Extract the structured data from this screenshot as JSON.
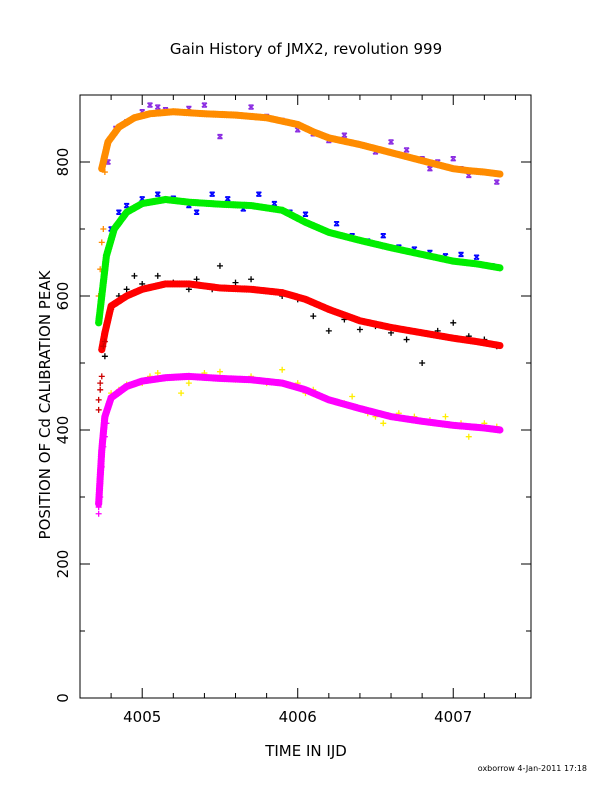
{
  "title": "Gain History of JMX2, revolution 999",
  "footer": "oxborrow   4-Jan-2011 17:18",
  "chart_data": {
    "type": "scatter",
    "xlabel": "TIME IN IJD",
    "ylabel": "POSITION OF Cd CALIBRATION PEAK",
    "xlim": [
      4004.6,
      4007.5
    ],
    "ylim": [
      0,
      900
    ],
    "x_ticks": [
      4005,
      4006,
      4007
    ],
    "x_tick_labels": [
      "4005",
      "4006",
      "4007"
    ],
    "y_ticks": [
      0,
      200,
      400,
      600,
      800
    ],
    "y_tick_labels": [
      "0",
      "200",
      "400",
      "600",
      "800"
    ],
    "grid": false,
    "series": [
      {
        "color": "#8a2be2",
        "marker": "x",
        "style": "scatter",
        "points": [
          [
            4004.78,
            800
          ],
          [
            4004.83,
            850
          ],
          [
            4004.9,
            860
          ],
          [
            4005.0,
            875
          ],
          [
            4005.05,
            885
          ],
          [
            4005.1,
            882
          ],
          [
            4005.15,
            878
          ],
          [
            4005.2,
            875
          ],
          [
            4005.3,
            880
          ],
          [
            4005.4,
            885
          ],
          [
            4005.45,
            872
          ],
          [
            4005.5,
            838
          ],
          [
            4005.6,
            870
          ],
          [
            4005.7,
            882
          ],
          [
            4005.8,
            868
          ],
          [
            4005.9,
            862
          ],
          [
            4006.0,
            848
          ],
          [
            4006.1,
            842
          ],
          [
            4006.2,
            832
          ],
          [
            4006.3,
            840
          ],
          [
            4006.4,
            826
          ],
          [
            4006.5,
            815
          ],
          [
            4006.6,
            830
          ],
          [
            4006.7,
            818
          ],
          [
            4006.8,
            805
          ],
          [
            4006.85,
            790
          ],
          [
            4006.9,
            800
          ],
          [
            4007.0,
            805
          ],
          [
            4007.05,
            790
          ],
          [
            4007.1,
            780
          ],
          [
            4007.2,
            785
          ],
          [
            4007.28,
            770
          ]
        ]
      },
      {
        "color": "#ff8c00",
        "marker": "o",
        "style": "smooth",
        "points": [
          [
            4004.74,
            790
          ],
          [
            4004.78,
            830
          ],
          [
            4004.85,
            852
          ],
          [
            4004.95,
            866
          ],
          [
            4005.05,
            872
          ],
          [
            4005.2,
            875
          ],
          [
            4005.4,
            872
          ],
          [
            4005.6,
            870
          ],
          [
            4005.8,
            866
          ],
          [
            4006.0,
            856
          ],
          [
            4006.1,
            845
          ],
          [
            4006.2,
            836
          ],
          [
            4006.4,
            826
          ],
          [
            4006.6,
            814
          ],
          [
            4006.8,
            802
          ],
          [
            4007.0,
            790
          ],
          [
            4007.1,
            787
          ],
          [
            4007.2,
            785
          ],
          [
            4007.3,
            782
          ]
        ]
      },
      {
        "color": "#ff8c00",
        "marker": "+",
        "style": "scatter",
        "points": [
          [
            4004.72,
            560
          ],
          [
            4004.72,
            600
          ],
          [
            4004.73,
            640
          ],
          [
            4004.74,
            680
          ],
          [
            4004.75,
            700
          ],
          [
            4004.76,
            785
          ]
        ]
      },
      {
        "color": "#0000ff",
        "marker": "x",
        "style": "scatter",
        "points": [
          [
            4004.75,
            620
          ],
          [
            4004.8,
            700
          ],
          [
            4004.85,
            725
          ],
          [
            4004.9,
            735
          ],
          [
            4005.0,
            745
          ],
          [
            4005.1,
            752
          ],
          [
            4005.2,
            746
          ],
          [
            4005.3,
            735
          ],
          [
            4005.35,
            725
          ],
          [
            4005.45,
            752
          ],
          [
            4005.55,
            745
          ],
          [
            4005.65,
            730
          ],
          [
            4005.75,
            752
          ],
          [
            4005.85,
            738
          ],
          [
            4005.95,
            725
          ],
          [
            4006.05,
            722
          ],
          [
            4006.15,
            700
          ],
          [
            4006.25,
            708
          ],
          [
            4006.35,
            690
          ],
          [
            4006.45,
            682
          ],
          [
            4006.55,
            690
          ],
          [
            4006.65,
            673
          ],
          [
            4006.75,
            670
          ],
          [
            4006.85,
            665
          ],
          [
            4006.95,
            660
          ],
          [
            4007.05,
            662
          ],
          [
            4007.15,
            658
          ],
          [
            4007.25,
            645
          ]
        ]
      },
      {
        "color": "#00ee00",
        "marker": "o",
        "style": "smooth",
        "points": [
          [
            4004.72,
            560
          ],
          [
            4004.74,
            600
          ],
          [
            4004.77,
            660
          ],
          [
            4004.82,
            700
          ],
          [
            4004.9,
            725
          ],
          [
            4005.0,
            738
          ],
          [
            4005.15,
            744
          ],
          [
            4005.3,
            740
          ],
          [
            4005.5,
            737
          ],
          [
            4005.7,
            735
          ],
          [
            4005.9,
            728
          ],
          [
            4006.05,
            710
          ],
          [
            4006.2,
            695
          ],
          [
            4006.4,
            683
          ],
          [
            4006.6,
            672
          ],
          [
            4006.8,
            662
          ],
          [
            4007.0,
            652
          ],
          [
            4007.15,
            648
          ],
          [
            4007.3,
            642
          ]
        ]
      },
      {
        "color": "#000000",
        "marker": "+",
        "style": "scatter",
        "points": [
          [
            4004.76,
            510
          ],
          [
            4004.8,
            580
          ],
          [
            4004.85,
            600
          ],
          [
            4004.9,
            610
          ],
          [
            4004.95,
            630
          ],
          [
            4005.0,
            618
          ],
          [
            4005.1,
            630
          ],
          [
            4005.2,
            620
          ],
          [
            4005.3,
            610
          ],
          [
            4005.35,
            625
          ],
          [
            4005.45,
            610
          ],
          [
            4005.5,
            645
          ],
          [
            4005.6,
            620
          ],
          [
            4005.7,
            625
          ],
          [
            4005.8,
            608
          ],
          [
            4005.9,
            600
          ],
          [
            4006.0,
            595
          ],
          [
            4006.1,
            570
          ],
          [
            4006.2,
            548
          ],
          [
            4006.3,
            565
          ],
          [
            4006.4,
            550
          ],
          [
            4006.5,
            555
          ],
          [
            4006.6,
            545
          ],
          [
            4006.7,
            535
          ],
          [
            4006.8,
            500
          ],
          [
            4006.9,
            548
          ],
          [
            4007.0,
            560
          ],
          [
            4007.1,
            540
          ],
          [
            4007.2,
            535
          ],
          [
            4007.28,
            525
          ]
        ]
      },
      {
        "color": "#ff0000",
        "marker": "o",
        "style": "smooth",
        "points": [
          [
            4004.74,
            520
          ],
          [
            4004.76,
            545
          ],
          [
            4004.8,
            585
          ],
          [
            4004.9,
            600
          ],
          [
            4005.0,
            610
          ],
          [
            4005.15,
            618
          ],
          [
            4005.3,
            618
          ],
          [
            4005.5,
            612
          ],
          [
            4005.7,
            610
          ],
          [
            4005.9,
            605
          ],
          [
            4006.05,
            595
          ],
          [
            4006.2,
            580
          ],
          [
            4006.4,
            563
          ],
          [
            4006.6,
            553
          ],
          [
            4006.8,
            545
          ],
          [
            4007.0,
            537
          ],
          [
            4007.15,
            532
          ],
          [
            4007.3,
            526
          ]
        ]
      },
      {
        "color": "#cc0000",
        "marker": "+",
        "style": "scatter",
        "points": [
          [
            4004.72,
            430
          ],
          [
            4004.72,
            445
          ],
          [
            4004.73,
            460
          ],
          [
            4004.73,
            470
          ],
          [
            4004.74,
            480
          ],
          [
            4004.75,
            525
          ],
          [
            4004.76,
            532
          ]
        ]
      },
      {
        "color": "#ffee00",
        "marker": "+",
        "style": "scatter",
        "points": [
          [
            4004.8,
            455
          ],
          [
            4004.85,
            460
          ],
          [
            4004.9,
            468
          ],
          [
            4005.0,
            470
          ],
          [
            4005.05,
            480
          ],
          [
            4005.1,
            485
          ],
          [
            4005.2,
            478
          ],
          [
            4005.25,
            455
          ],
          [
            4005.3,
            470
          ],
          [
            4005.4,
            485
          ],
          [
            4005.5,
            487
          ],
          [
            4005.6,
            475
          ],
          [
            4005.7,
            480
          ],
          [
            4005.8,
            470
          ],
          [
            4005.9,
            490
          ],
          [
            4006.0,
            470
          ],
          [
            4006.05,
            455
          ],
          [
            4006.1,
            460
          ],
          [
            4006.2,
            445
          ],
          [
            4006.3,
            440
          ],
          [
            4006.35,
            450
          ],
          [
            4006.45,
            425
          ],
          [
            4006.5,
            420
          ],
          [
            4006.55,
            410
          ],
          [
            4006.65,
            425
          ],
          [
            4006.75,
            420
          ],
          [
            4006.85,
            415
          ],
          [
            4006.95,
            420
          ],
          [
            4007.05,
            410
          ],
          [
            4007.1,
            390
          ],
          [
            4007.2,
            410
          ],
          [
            4007.28,
            405
          ]
        ]
      },
      {
        "color": "#ff00ff",
        "marker": "o",
        "style": "smooth",
        "points": [
          [
            4004.72,
            290
          ],
          [
            4004.73,
            330
          ],
          [
            4004.74,
            370
          ],
          [
            4004.76,
            420
          ],
          [
            4004.8,
            448
          ],
          [
            4004.9,
            465
          ],
          [
            4005.0,
            473
          ],
          [
            4005.15,
            478
          ],
          [
            4005.3,
            480
          ],
          [
            4005.5,
            477
          ],
          [
            4005.7,
            475
          ],
          [
            4005.9,
            470
          ],
          [
            4006.05,
            460
          ],
          [
            4006.2,
            445
          ],
          [
            4006.4,
            432
          ],
          [
            4006.6,
            420
          ],
          [
            4006.8,
            413
          ],
          [
            4007.0,
            407
          ],
          [
            4007.2,
            403
          ],
          [
            4007.3,
            400
          ]
        ]
      },
      {
        "color": "#ff00ff",
        "marker": "+",
        "style": "scatter",
        "points": [
          [
            4004.72,
            275
          ],
          [
            4004.72,
            285
          ],
          [
            4004.73,
            300
          ],
          [
            4004.73,
            320
          ],
          [
            4004.74,
            345
          ],
          [
            4004.74,
            360
          ],
          [
            4004.75,
            375
          ],
          [
            4004.76,
            390
          ],
          [
            4004.77,
            410
          ]
        ]
      }
    ]
  }
}
